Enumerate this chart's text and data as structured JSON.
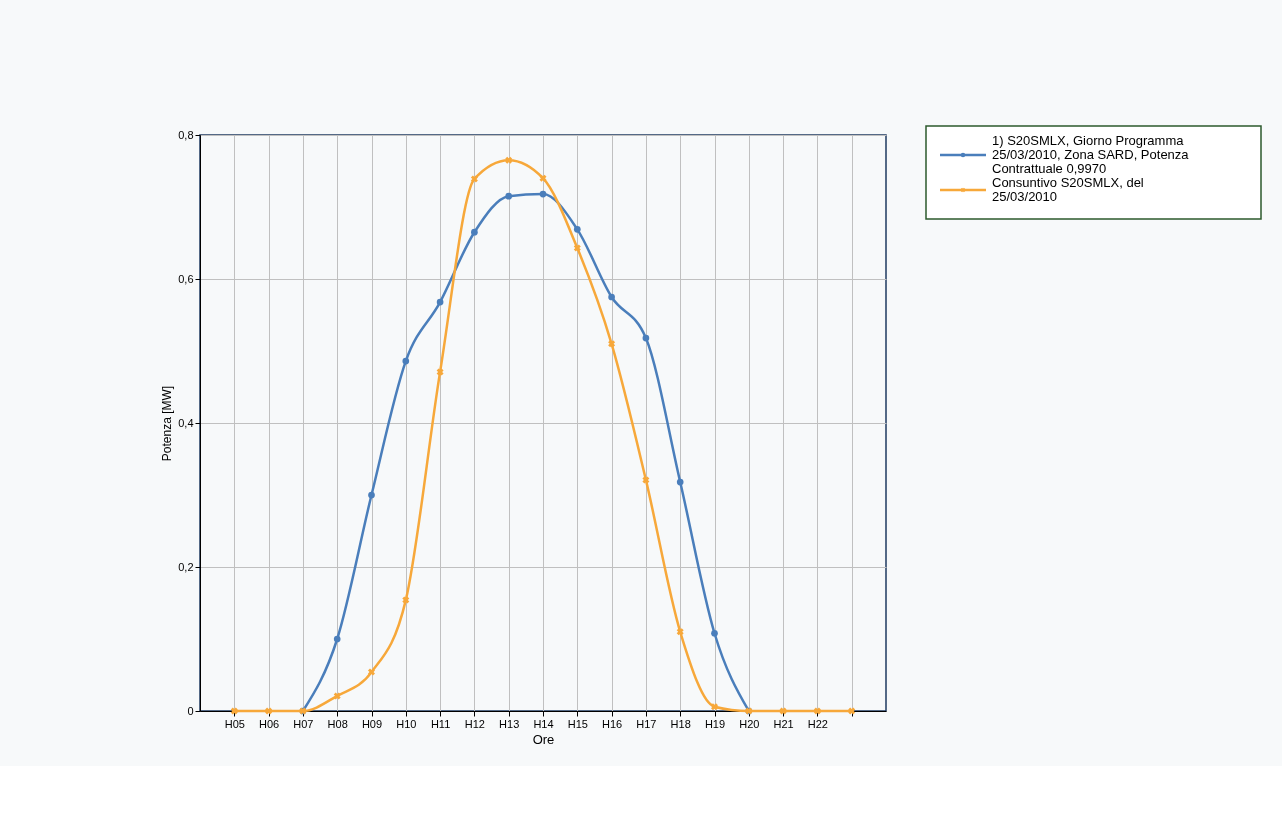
{
  "chart_data": {
    "type": "line",
    "xlabel": "Ore",
    "ylabel": "Potenza [MW]",
    "categories": [
      "H05",
      "H06",
      "H07",
      "H08",
      "H09",
      "H10",
      "H11",
      "H12",
      "H13",
      "H14",
      "H15",
      "H16",
      "H17",
      "H18",
      "H19",
      "H20",
      "H21",
      "H22",
      null
    ],
    "series": [
      {
        "name": "1) S20SMLX, Giorno Programma 25/03/2010, Zona SARD, Potenza Contrattuale 0,9970",
        "color": "#4a7ebb",
        "marker": "circle",
        "values": [
          null,
          null,
          0,
          0.1,
          0.3,
          0.486,
          0.568,
          0.665,
          0.715,
          0.718,
          0.669,
          0.575,
          0.518,
          0.318,
          0.108,
          0,
          null,
          null,
          null
        ]
      },
      {
        "name": "Consuntivo S20SMLX, del 25/03/2010",
        "color": "#f7a83a",
        "marker": "cross",
        "values": [
          0,
          0,
          0,
          0.021,
          0.054,
          0.154,
          0.471,
          0.739,
          0.765,
          0.74,
          0.643,
          0.51,
          0.321,
          0.11,
          0.006,
          0,
          0,
          0,
          0
        ]
      }
    ],
    "ylim": [
      0,
      0.8
    ],
    "yticks": [
      0,
      {
        "value": 0.2,
        "label": "0,2"
      },
      {
        "value": 0.4,
        "label": "0,4"
      },
      {
        "value": 0.6,
        "label": "0,6"
      },
      {
        "value": 0.8,
        "label": "0,8"
      }
    ],
    "grid": true,
    "legend": "top right",
    "line_style": "solid"
  }
}
